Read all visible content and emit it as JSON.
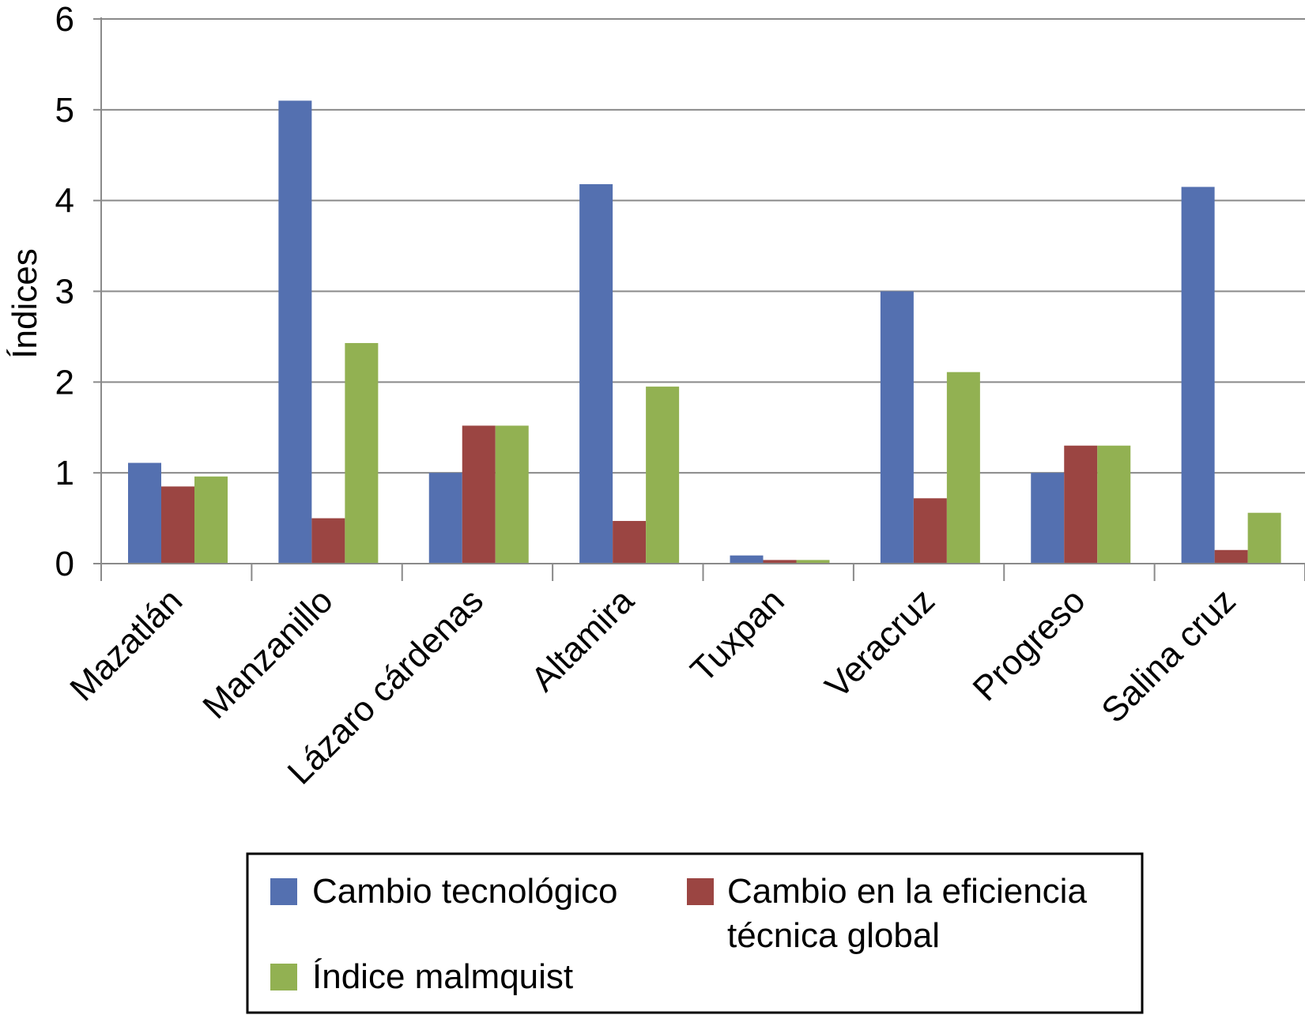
{
  "chart_data": {
    "type": "bar",
    "title": "",
    "xlabel": "",
    "ylabel": "Índices",
    "ylim": [
      0,
      6
    ],
    "yticks": [
      "0",
      "1",
      "2",
      "3",
      "4",
      "5",
      "6"
    ],
    "grid": true,
    "legend_position": "bottom",
    "categories": [
      "Mazatlán",
      "Manzanillo",
      "Lázaro cárdenas",
      "Altamira",
      "Tuxpan",
      "Veracruz",
      "Progreso",
      "Salina cruz"
    ],
    "series": [
      {
        "name": "Cambio tecnológico",
        "color": "#5470b0",
        "values": [
          1.11,
          5.1,
          1.0,
          4.18,
          0.09,
          3.0,
          1.0,
          4.15
        ]
      },
      {
        "name": "Cambio en la eficiencia técnica global",
        "name_lines": [
          "Cambio en la eficiencia",
          "técnica global"
        ],
        "color": "#9b4542",
        "values": [
          0.85,
          0.5,
          1.52,
          0.47,
          0.04,
          0.72,
          1.3,
          0.15
        ]
      },
      {
        "name": "Índice malmquist",
        "color": "#92b152",
        "values": [
          0.96,
          2.43,
          1.52,
          1.95,
          0.04,
          2.11,
          1.3,
          0.56
        ]
      }
    ]
  }
}
